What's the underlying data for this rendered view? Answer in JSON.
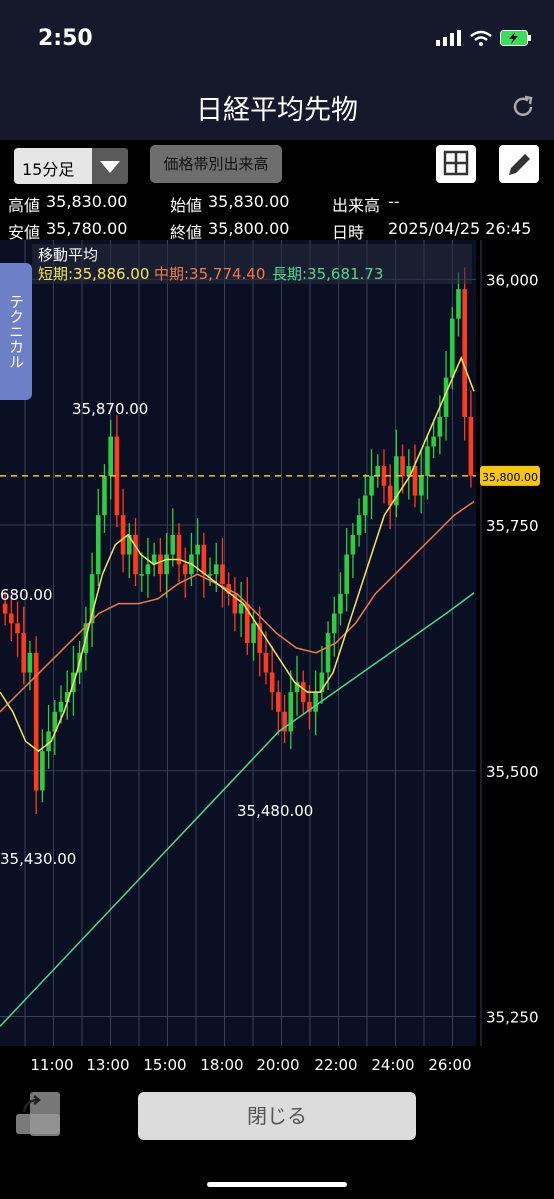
{
  "status": {
    "time": "2:50"
  },
  "header": {
    "title": "日経平均先物"
  },
  "toolbar": {
    "period": "15分足",
    "price_volume_button": "価格帯別出来高"
  },
  "ohlc": {
    "high_label": "高値",
    "high": "35,830.00",
    "open_label": "始値",
    "open": "35,830.00",
    "volume_label": "出来高",
    "volume": "--",
    "low_label": "安値",
    "low": "35,780.00",
    "close_label": "終値",
    "close": "35,800.00",
    "datetime_label": "日時",
    "datetime": "2025/04/25 26:45"
  },
  "moving_average": {
    "title": "移動平均",
    "short": "短期:35,886.00",
    "mid": "中期:35,774.40",
    "long": "長期:35,681.73"
  },
  "side_tab": "テクニカル",
  "chart_data": {
    "type": "candlestick",
    "y_ticks": [
      "36,000",
      "35,750",
      "35,500",
      "35,250"
    ],
    "x_ticks": [
      "11:00",
      "13:00",
      "15:00",
      "18:00",
      "20:00",
      "22:00",
      "24:00",
      "26:00"
    ],
    "current_price_label": "35,800.00",
    "annotations": [
      "35,870.00",
      "680.00",
      "35,480.00",
      "35,430.00"
    ],
    "ylim": [
      35220,
      36040
    ],
    "colors": {
      "up": "#2ecc40",
      "down": "#ff3b1f",
      "short_ma": "#f5e85a",
      "mid_ma": "#f07a4a",
      "long_ma": "#4ed98c",
      "current": "#f5c518"
    },
    "candles_close": [
      35660,
      35650,
      35640,
      35600,
      35620,
      35480,
      35520,
      35540,
      35560,
      35570,
      35580,
      35600,
      35620,
      35650,
      35700,
      35760,
      35800,
      35840,
      35760,
      35720,
      35740,
      35700,
      35700,
      35710,
      35720,
      35700,
      35720,
      35740,
      35710,
      35700,
      35720,
      35730,
      35700,
      35700,
      35710,
      35690,
      35680,
      35660,
      35670,
      35630,
      35650,
      35620,
      35600,
      35580,
      35560,
      35540,
      35580,
      35590,
      35570,
      35560,
      35580,
      35600,
      35640,
      35660,
      35680,
      35720,
      35740,
      35760,
      35780,
      35800,
      35810,
      35790,
      35770,
      35820,
      35800,
      35810,
      35780,
      35800,
      35830,
      35840,
      35860,
      35900,
      35960,
      35990,
      35860,
      35800
    ],
    "short_ma": [
      35580,
      35560,
      35530,
      35520,
      35530,
      35560,
      35600,
      35650,
      35700,
      35730,
      35740,
      35720,
      35710,
      35715,
      35715,
      35710,
      35700,
      35690,
      35680,
      35670,
      35650,
      35630,
      35610,
      35590,
      35580,
      35580,
      35600,
      35640,
      35680,
      35720,
      35760,
      35780,
      35800,
      35830,
      35860,
      35890,
      35920,
      35886
    ],
    "mid_ma": [
      35560,
      35580,
      35600,
      35620,
      35640,
      35660,
      35670,
      35670,
      35675,
      35690,
      35700,
      35690,
      35680,
      35660,
      35640,
      35625,
      35620,
      35630,
      35650,
      35680,
      35700,
      35720,
      35740,
      35760,
      35774
    ],
    "long_ma": [
      35240,
      35270,
      35300,
      35330,
      35360,
      35390,
      35420,
      35450,
      35480,
      35510,
      35540,
      35560,
      35580,
      35600,
      35620,
      35640,
      35660,
      35681
    ]
  },
  "footer": {
    "close_button": "閉じる"
  }
}
